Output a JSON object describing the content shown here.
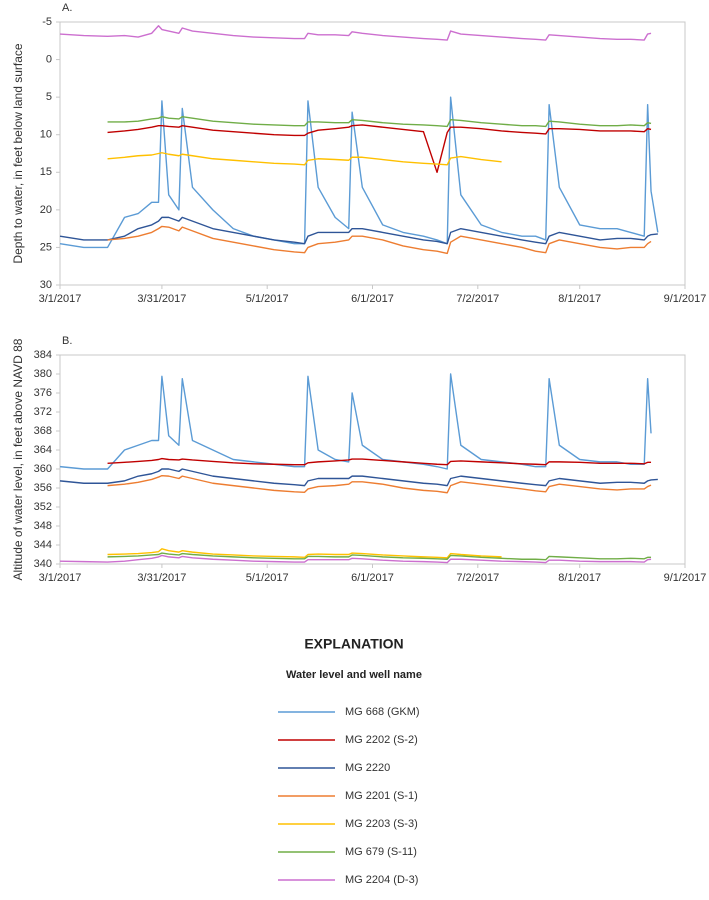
{
  "chart_data": [
    {
      "type": "line",
      "title": "A.",
      "y_label": "Depth to water, in feet below land surface",
      "y_inverted": true,
      "grid": false,
      "x": [
        "3/1/2017",
        "3/8/2017",
        "3/15/2017",
        "3/20/2017",
        "3/24/2017",
        "3/28/2017",
        "3/30/2017",
        "3/31/2017",
        "4/2/2017",
        "4/5/2017",
        "4/6/2017",
        "4/9/2017",
        "4/15/2017",
        "4/21/2017",
        "4/27/2017",
        "5/3/2017",
        "5/9/2017",
        "5/12/2017",
        "5/13/2017",
        "5/16/2017",
        "5/21/2017",
        "5/25/2017",
        "5/26/2017",
        "5/29/2017",
        "6/4/2017",
        "6/10/2017",
        "6/16/2017",
        "6/20/2017",
        "6/23/2017",
        "6/24/2017",
        "6/27/2017",
        "7/3/2017",
        "7/9/2017",
        "7/15/2017",
        "7/19/2017",
        "7/22/2017",
        "7/23/2017",
        "7/26/2017",
        "8/1/2017",
        "8/7/2017",
        "8/12/2017",
        "8/16/2017",
        "8/20/2017",
        "8/21/2017",
        "8/22/2017",
        "8/24/2017"
      ],
      "xlim": [
        "3/1/2017",
        "9/1/2017"
      ],
      "xticks": [
        "3/1/2017",
        "3/31/2017",
        "5/1/2017",
        "6/1/2017",
        "7/2/2017",
        "8/1/2017",
        "9/1/2017"
      ],
      "ylim": [
        -5,
        30
      ],
      "yticks": [
        -5,
        0,
        5,
        10,
        15,
        20,
        25,
        30
      ],
      "series": [
        {
          "name": "MG 668 (GKM)",
          "color": "#5b9bd5",
          "values": [
            24.5,
            25,
            25,
            21,
            20.5,
            19,
            19,
            5.5,
            18,
            20,
            6.5,
            17,
            20,
            22.5,
            23.5,
            24,
            24.5,
            24.5,
            5.5,
            17,
            21,
            22.5,
            7,
            17,
            22,
            23,
            23.5,
            24,
            24.5,
            5,
            18,
            22,
            23,
            23.5,
            23.5,
            24,
            6,
            17,
            22,
            22.5,
            22.5,
            23,
            23.5,
            6,
            17.5,
            23
          ]
        },
        {
          "name": "MG 2202 (S-2)",
          "color": "#c00000",
          "values": [
            null,
            null,
            9.7,
            9.5,
            9.3,
            9.0,
            8.8,
            8.8,
            8.9,
            9.0,
            8.8,
            9.0,
            9.4,
            9.6,
            9.8,
            10,
            10.1,
            10.1,
            9.8,
            9.4,
            9.2,
            9.0,
            8.8,
            8.7,
            9.0,
            9.3,
            9.6,
            15,
            9.7,
            9.0,
            9.0,
            9.2,
            9.5,
            9.7,
            9.8,
            9.9,
            9.2,
            9.2,
            9.3,
            9.5,
            9.5,
            9.5,
            9.6,
            9.2,
            9.3,
            null
          ]
        },
        {
          "name": "MG 2220",
          "color": "#2f5597",
          "values": [
            23.5,
            24,
            24,
            23.5,
            22.5,
            22,
            21.5,
            21,
            21,
            21.5,
            21,
            21.5,
            22.5,
            23,
            23.5,
            24,
            24.3,
            24.5,
            23.5,
            23,
            23,
            23,
            22.5,
            22.5,
            23,
            23.5,
            24,
            24.2,
            24.5,
            23,
            22.5,
            23,
            23.5,
            24,
            24.3,
            24.5,
            23.5,
            23,
            23.5,
            24,
            23.8,
            23.8,
            24,
            23.5,
            23.3,
            23.2
          ]
        },
        {
          "name": "MG 2201 (S-1)",
          "color": "#ed7d31",
          "values": [
            null,
            null,
            24,
            23.8,
            23.5,
            23,
            22.5,
            22.2,
            22.3,
            22.8,
            22.3,
            22.8,
            23.8,
            24.3,
            24.8,
            25.3,
            25.6,
            25.7,
            25,
            24.5,
            24.3,
            24,
            23.5,
            23.5,
            24,
            24.8,
            25.3,
            25.5,
            25.8,
            24.3,
            23.5,
            24,
            24.5,
            25,
            25.5,
            25.7,
            24.5,
            24,
            24.5,
            25,
            25.2,
            25,
            25,
            24.5,
            24.2,
            null
          ]
        },
        {
          "name": "MG 2203 (S-3)",
          "color": "#ffc000",
          "values": [
            null,
            null,
            13.2,
            13.0,
            12.8,
            12.7,
            12.5,
            12.4,
            12.6,
            12.8,
            12.6,
            12.8,
            13.2,
            13.4,
            13.6,
            13.8,
            13.9,
            14.0,
            13.4,
            13.2,
            13.3,
            13.4,
            13.0,
            13.0,
            13.3,
            13.6,
            13.8,
            13.9,
            14.0,
            13.1,
            12.9,
            13.3,
            13.6,
            null,
            null,
            null,
            null,
            null,
            null,
            null,
            null,
            null,
            null,
            null,
            null,
            null
          ]
        },
        {
          "name": "MG 679 (S-11)",
          "color": "#70ad47",
          "values": [
            null,
            null,
            8.3,
            8.3,
            8.2,
            7.9,
            7.8,
            7.6,
            7.8,
            7.9,
            7.6,
            7.8,
            8.2,
            8.4,
            8.6,
            8.7,
            8.8,
            8.8,
            8.3,
            8.3,
            8.4,
            8.4,
            8.0,
            8.1,
            8.4,
            8.6,
            8.7,
            8.8,
            8.9,
            8.0,
            8.1,
            8.4,
            8.6,
            8.8,
            8.8,
            8.9,
            8.2,
            8.3,
            8.6,
            8.8,
            8.8,
            8.7,
            8.8,
            8.4,
            8.5,
            null
          ]
        },
        {
          "name": "MG 2204 (D-3)",
          "color": "#cc6fcf",
          "values": [
            -3.4,
            -3.2,
            -3.1,
            -3.2,
            -3.0,
            -3.5,
            -4.5,
            -4.0,
            -3.8,
            -3.5,
            -4.2,
            -3.8,
            -3.5,
            -3.2,
            -3.0,
            -2.9,
            -2.8,
            -2.8,
            -3.5,
            -3.3,
            -3.3,
            -3.2,
            -3.7,
            -3.5,
            -3.2,
            -3.0,
            -2.8,
            -2.7,
            -2.6,
            -3.8,
            -3.4,
            -3.2,
            -3.0,
            -2.8,
            -2.7,
            -2.6,
            -3.3,
            -3.2,
            -3.0,
            -2.8,
            -2.7,
            -2.7,
            -2.6,
            -3.4,
            -3.5,
            null
          ]
        }
      ]
    },
    {
      "type": "line",
      "title": "B.",
      "y_label": "Altitude of water level, in feet above NAVD 88",
      "y_inverted": false,
      "grid": false,
      "x": [
        "3/1/2017",
        "3/8/2017",
        "3/15/2017",
        "3/20/2017",
        "3/24/2017",
        "3/28/2017",
        "3/30/2017",
        "3/31/2017",
        "4/2/2017",
        "4/5/2017",
        "4/6/2017",
        "4/9/2017",
        "4/15/2017",
        "4/21/2017",
        "4/27/2017",
        "5/3/2017",
        "5/9/2017",
        "5/12/2017",
        "5/13/2017",
        "5/16/2017",
        "5/21/2017",
        "5/25/2017",
        "5/26/2017",
        "5/29/2017",
        "6/4/2017",
        "6/10/2017",
        "6/16/2017",
        "6/20/2017",
        "6/23/2017",
        "6/24/2017",
        "6/27/2017",
        "7/3/2017",
        "7/9/2017",
        "7/15/2017",
        "7/19/2017",
        "7/22/2017",
        "7/23/2017",
        "7/26/2017",
        "8/1/2017",
        "8/7/2017",
        "8/12/2017",
        "8/16/2017",
        "8/20/2017",
        "8/21/2017",
        "8/22/2017",
        "8/24/2017"
      ],
      "xlim": [
        "3/1/2017",
        "9/1/2017"
      ],
      "xticks": [
        "3/1/2017",
        "3/31/2017",
        "5/1/2017",
        "6/1/2017",
        "7/2/2017",
        "8/1/2017",
        "9/1/2017"
      ],
      "ylim": [
        340,
        384
      ],
      "yticks": [
        340,
        344,
        348,
        352,
        356,
        360,
        364,
        368,
        372,
        376,
        380,
        384
      ],
      "series": [
        {
          "name": "MG 668 (GKM)",
          "color": "#5b9bd5",
          "values": [
            360.5,
            360,
            360,
            364,
            365,
            366,
            366,
            379.5,
            367,
            365,
            379,
            366,
            364,
            362,
            361.5,
            361,
            360.5,
            360.5,
            379.5,
            364,
            362,
            361.5,
            376,
            365,
            362,
            361.5,
            361,
            360.5,
            360,
            380,
            365,
            362,
            361.5,
            361,
            360.5,
            360.5,
            379,
            365,
            362,
            361.5,
            361.5,
            361,
            361,
            379,
            367.5,
            null
          ]
        },
        {
          "name": "MG 2202 (S-2)",
          "color": "#c00000",
          "values": [
            null,
            null,
            361.2,
            361.4,
            361.6,
            361.8,
            362,
            362.2,
            362,
            361.9,
            362.1,
            361.9,
            361.6,
            361.3,
            361.1,
            361,
            360.9,
            360.9,
            361.3,
            361.5,
            361.7,
            361.9,
            362.1,
            362.1,
            361.8,
            361.5,
            361.2,
            361,
            360.9,
            361.6,
            361.7,
            361.5,
            361.3,
            361.1,
            361,
            360.9,
            361.5,
            361.5,
            361.4,
            361.2,
            361.2,
            361.2,
            361.1,
            361.4,
            361.4,
            null
          ]
        },
        {
          "name": "MG 2220",
          "color": "#2f5597",
          "values": [
            357.5,
            357,
            357,
            357.5,
            358.5,
            359,
            359.5,
            360,
            360,
            359.5,
            360,
            359.5,
            358.5,
            358,
            357.5,
            357,
            356.7,
            356.5,
            357.5,
            358,
            358,
            358,
            358.5,
            358.5,
            358,
            357.5,
            357,
            356.8,
            356.5,
            358,
            358.5,
            358,
            357.5,
            357,
            356.7,
            356.5,
            357.5,
            358,
            357.5,
            357,
            357.2,
            357.2,
            357,
            357.5,
            357.7,
            357.8
          ]
        },
        {
          "name": "MG 2201 (S-1)",
          "color": "#ed7d31",
          "values": [
            null,
            null,
            356.5,
            356.8,
            357.2,
            357.8,
            358.3,
            358.6,
            358.5,
            358,
            358.5,
            358,
            357,
            356.5,
            356,
            355.5,
            355.2,
            355.1,
            355.8,
            356.3,
            356.5,
            356.8,
            357.3,
            357.3,
            356.8,
            356,
            355.5,
            355.3,
            355,
            356.5,
            357.3,
            356.8,
            356.3,
            355.8,
            355.4,
            355.2,
            356.3,
            356.8,
            356.3,
            355.8,
            355.6,
            355.8,
            355.8,
            356.3,
            356.6,
            null
          ]
        },
        {
          "name": "MG 2203 (S-3)",
          "color": "#ffc000",
          "values": [
            null,
            null,
            342,
            342.1,
            342.2,
            342.4,
            342.6,
            343.2,
            342.8,
            342.5,
            342.8,
            342.5,
            342.1,
            341.9,
            341.7,
            341.6,
            341.5,
            341.4,
            342,
            342.1,
            342,
            342,
            342.3,
            342.2,
            341.9,
            341.7,
            341.5,
            341.4,
            341.3,
            342.2,
            342,
            341.7,
            341.5,
            null,
            null,
            null,
            null,
            null,
            null,
            null,
            null,
            null,
            null,
            null,
            null,
            null
          ]
        },
        {
          "name": "MG 679 (S-11)",
          "color": "#70ad47",
          "values": [
            null,
            null,
            341.5,
            341.6,
            341.7,
            341.9,
            342,
            342.3,
            342.1,
            341.9,
            342.2,
            342,
            341.7,
            341.5,
            341.3,
            341.2,
            341.1,
            341.1,
            341.6,
            341.6,
            341.5,
            341.5,
            341.9,
            341.8,
            341.5,
            341.3,
            341.2,
            341.1,
            341,
            341.8,
            341.7,
            341.4,
            341.2,
            341,
            341,
            340.9,
            341.6,
            341.5,
            341.3,
            341.1,
            341.1,
            341.2,
            341.1,
            341.4,
            341.4,
            null
          ]
        },
        {
          "name": "MG 2204 (D-3)",
          "color": "#cc6fcf",
          "values": [
            340.6,
            340.5,
            340.4,
            340.6,
            340.9,
            341.2,
            341.5,
            341.8,
            341.5,
            341.3,
            341.6,
            341.3,
            341,
            340.8,
            340.6,
            340.5,
            340.4,
            340.4,
            340.9,
            340.9,
            340.9,
            340.9,
            341.2,
            341.1,
            340.8,
            340.6,
            340.5,
            340.4,
            340.3,
            341,
            341,
            340.8,
            340.6,
            340.5,
            340.4,
            340.3,
            340.8,
            340.8,
            340.6,
            340.5,
            340.5,
            340.5,
            340.4,
            340.9,
            341,
            null
          ]
        }
      ]
    }
  ],
  "legend": {
    "title": "EXPLANATION",
    "subtitle": "Water level and well name"
  }
}
